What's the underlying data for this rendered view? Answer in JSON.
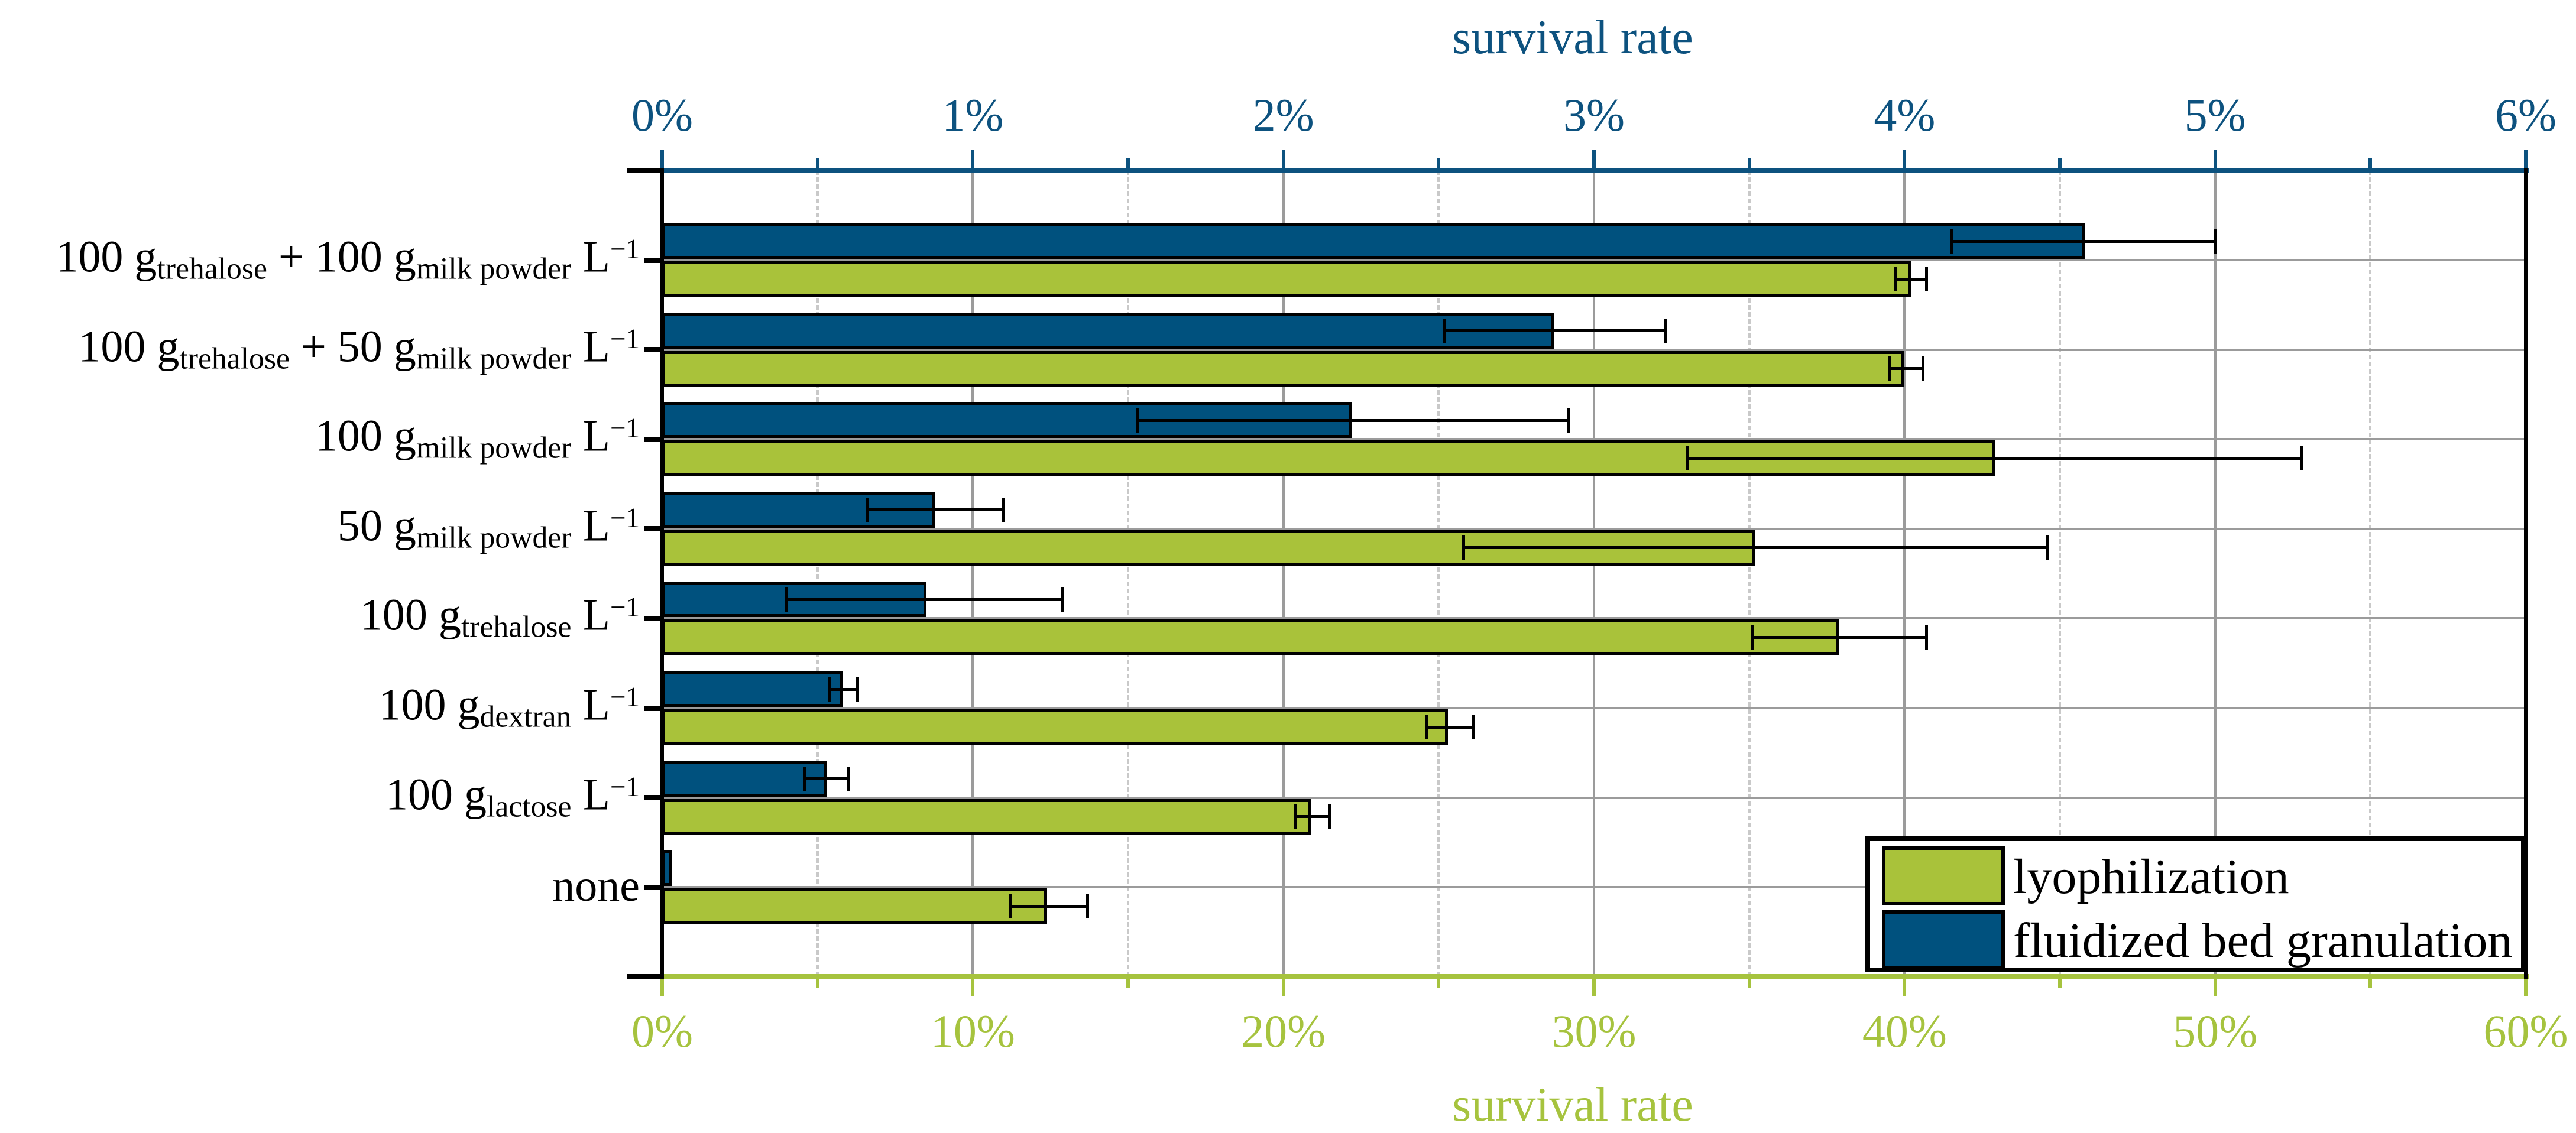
{
  "chart_data": {
    "type": "bar",
    "orientation": "horizontal",
    "categories": [
      "100 g_trehalose + 100 g_milk powder L^-1",
      "100 g_trehalose + 50 g_milk powder L^-1",
      "100 g_milk powder L^-1",
      "50 g_milk powder L^-1",
      "100 g_trehalose L^-1",
      "100 g_dextran L^-1",
      "100 g_lactose L^-1",
      "none"
    ],
    "category_label_parts": [
      [
        {
          "t": "100 g"
        },
        {
          "sub": "trehalose"
        },
        {
          "t": " + 100 g"
        },
        {
          "sub": "milk powder"
        },
        {
          "t": " L"
        },
        {
          "sup": "−1"
        }
      ],
      [
        {
          "t": "100 g"
        },
        {
          "sub": "trehalose"
        },
        {
          "t": " + 50 g"
        },
        {
          "sub": "milk powder"
        },
        {
          "t": " L"
        },
        {
          "sup": "−1"
        }
      ],
      [
        {
          "t": "100 g"
        },
        {
          "sub": "milk powder"
        },
        {
          "t": " L"
        },
        {
          "sup": "−1"
        }
      ],
      [
        {
          "t": "50 g"
        },
        {
          "sub": "milk powder"
        },
        {
          "t": " L"
        },
        {
          "sup": "−1"
        }
      ],
      [
        {
          "t": "100 g"
        },
        {
          "sub": "trehalose"
        },
        {
          "t": " L"
        },
        {
          "sup": "−1"
        }
      ],
      [
        {
          "t": "100 g"
        },
        {
          "sub": "dextran"
        },
        {
          "t": " L"
        },
        {
          "sup": "−1"
        }
      ],
      [
        {
          "t": "100 g"
        },
        {
          "sub": "lactose"
        },
        {
          "t": " L"
        },
        {
          "sup": "−1"
        }
      ],
      [
        {
          "t": "none"
        }
      ]
    ],
    "series": [
      {
        "name": "fluidized bed granulation",
        "axis": "top",
        "color": "#00517e",
        "unit": "%",
        "values": [
          4.58,
          2.87,
          2.22,
          0.88,
          0.85,
          0.58,
          0.53,
          0.03
        ],
        "err_minus": [
          0.43,
          0.35,
          0.69,
          0.22,
          0.45,
          0.04,
          0.07,
          0
        ],
        "err_plus": [
          0.42,
          0.36,
          0.7,
          0.22,
          0.44,
          0.05,
          0.07,
          0
        ]
      },
      {
        "name": "lyophilization",
        "axis": "bottom",
        "color": "#a9c23a",
        "unit": "%",
        "values": [
          40.2,
          40.0,
          42.9,
          35.2,
          37.9,
          25.3,
          20.9,
          12.4
        ],
        "err_minus": [
          0.5,
          0.5,
          9.9,
          9.4,
          2.8,
          0.7,
          0.5,
          1.2
        ],
        "err_plus": [
          0.5,
          0.6,
          9.9,
          9.4,
          2.8,
          0.8,
          0.6,
          1.3
        ]
      }
    ],
    "top_axis": {
      "title": "survival rate",
      "color": "#0d527f",
      "min": 0,
      "max": 6,
      "major_tick_labels": [
        "0%",
        "1%",
        "2%",
        "3%",
        "4%",
        "5%",
        "6%"
      ],
      "major_step": 1,
      "minor_step": 0.5
    },
    "bottom_axis": {
      "title": "survival rate",
      "color": "#a6c33e",
      "min": 0,
      "max": 60,
      "major_tick_labels": [
        "0%",
        "10%",
        "20%",
        "30%",
        "40%",
        "50%",
        "60%"
      ],
      "major_step": 10,
      "minor_step": 5
    },
    "legend": {
      "position": "bottom-right",
      "items": [
        {
          "label": "lyophilization",
          "color": "#a9c23a"
        },
        {
          "label": "fluidized bed granulation",
          "color": "#00517e"
        }
      ]
    },
    "grid": {
      "vertical_major": "solid",
      "vertical_minor": "dashed",
      "horizontal": "solid-at-category-centers",
      "solid_color": "#9b9b9b",
      "dash_color": "#c9c9c9"
    }
  }
}
